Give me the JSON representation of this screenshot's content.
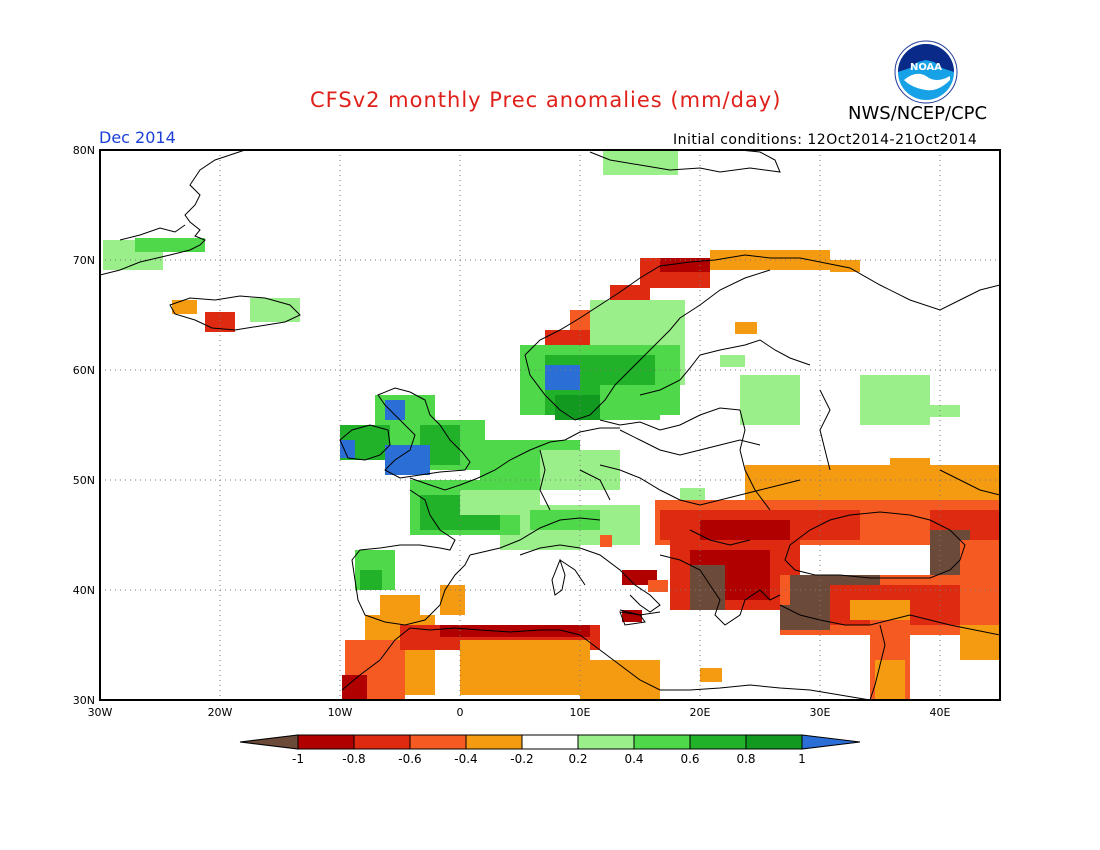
{
  "title": "CFSv2 monthly Prec anomalies (mm/day)",
  "org": "NWS/NCEP/CPC",
  "logo_text": "NOAA",
  "valid_month": "Dec 2014",
  "initial_conditions": "Initial conditions: 12Oct2014-21Oct2014",
  "map": {
    "region": "Europe",
    "lon_range": [
      -30,
      45
    ],
    "lat_range": [
      30,
      80
    ],
    "grid": true,
    "lat_labels": [
      "80N",
      "70N",
      "60N",
      "50N",
      "40N",
      "30N"
    ],
    "lon_labels": [
      "30W",
      "20W",
      "10W",
      "0",
      "10E",
      "20E",
      "30E",
      "40E"
    ]
  },
  "colorbar": {
    "labels": [
      "-1",
      "-0.8",
      "-0.6",
      "-0.4",
      "-0.2",
      "0.2",
      "0.4",
      "0.6",
      "0.8",
      "1"
    ],
    "colors": [
      "#6b4a3a",
      "#b00000",
      "#dd2a10",
      "#f55a22",
      "#f59b12",
      "#ffffff",
      "#9bef8a",
      "#4ed84a",
      "#22b22a",
      "#129a20",
      "#2b6fd6"
    ]
  },
  "anomaly_regions": [
    {
      "name": "Greenland coast",
      "color": "#9bef8a"
    },
    {
      "name": "Iceland",
      "color": "#9bef8a"
    },
    {
      "name": "Norway coast",
      "color": "#dd2a10"
    },
    {
      "name": "Scandinavia",
      "color": "#4ed84a"
    },
    {
      "name": "British Isles",
      "color": "#4ed84a"
    },
    {
      "name": "France",
      "color": "#4ed84a"
    },
    {
      "name": "Iberia west",
      "color": "#4ed84a"
    },
    {
      "name": "Black Sea basin",
      "color": "#f59b12"
    },
    {
      "name": "Balkans",
      "color": "#b00000"
    },
    {
      "name": "Turkey",
      "color": "#6b4a3a"
    },
    {
      "name": "North Africa",
      "color": "#f59b12"
    },
    {
      "name": "Western Russia",
      "color": "#9bef8a"
    }
  ]
}
